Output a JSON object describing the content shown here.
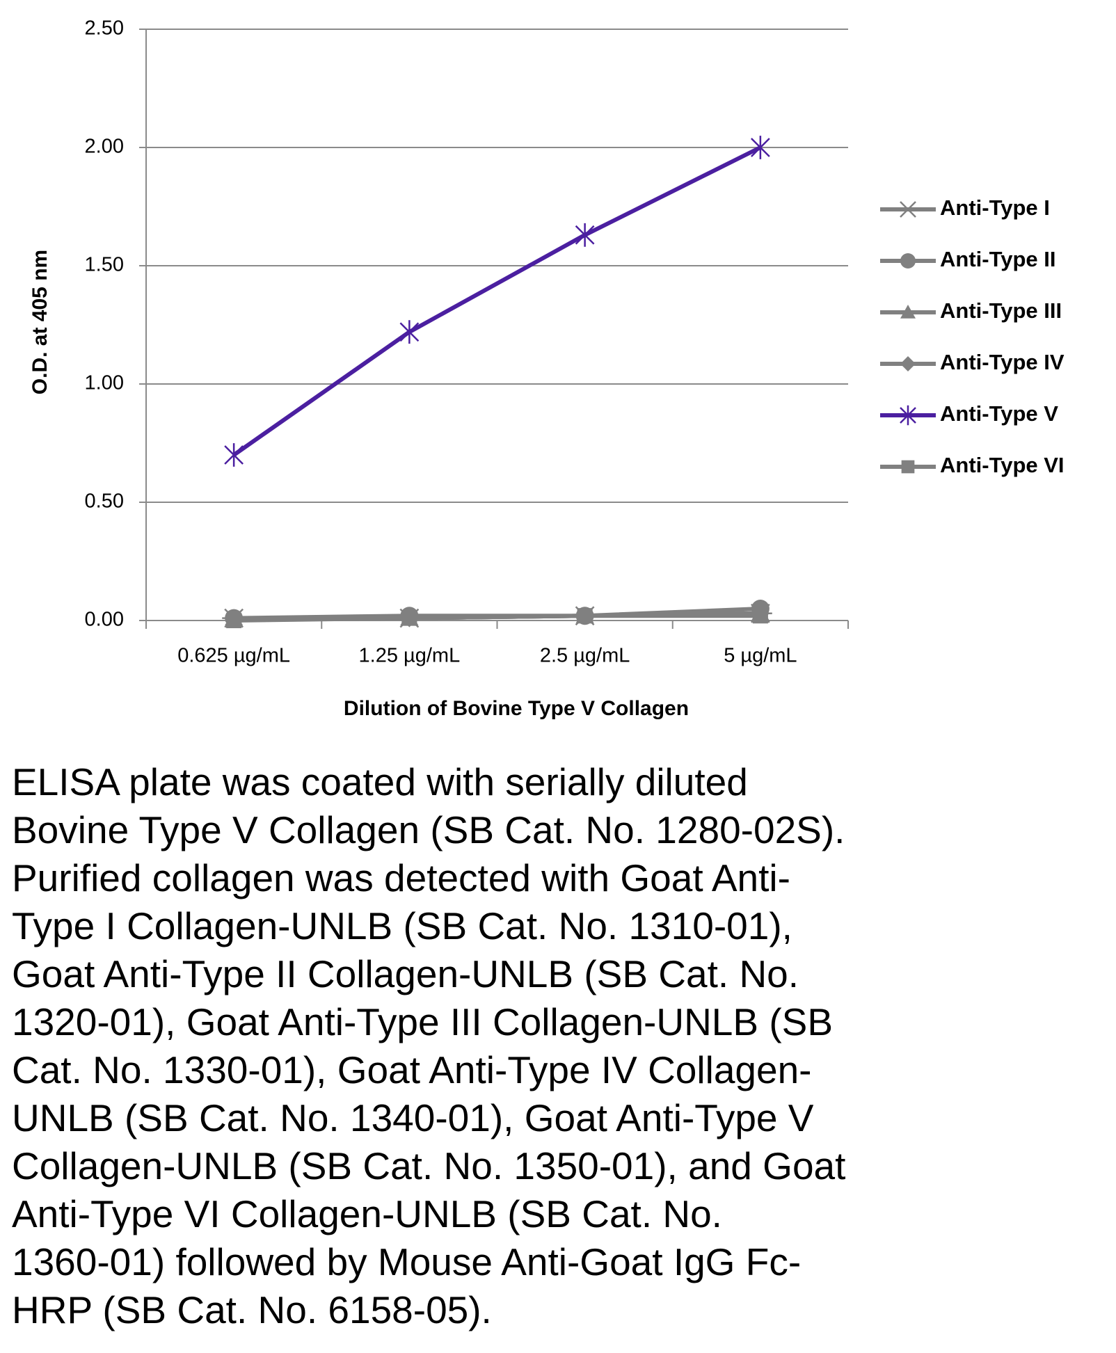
{
  "chart_data": {
    "type": "line",
    "xlabel": "Dilution of Bovine Type V Collagen",
    "ylabel": "O.D. at 405 nm",
    "categories": [
      "0.625 µg/mL",
      "1.25 µg/mL",
      "2.5 µg/mL",
      "5 µg/mL"
    ],
    "series": [
      {
        "name": "Anti-Type I",
        "color": "#808080",
        "marker": "asterisk",
        "values": [
          0.01,
          0.01,
          0.02,
          0.03
        ]
      },
      {
        "name": "Anti-Type II",
        "color": "#808080",
        "marker": "circle",
        "values": [
          0.01,
          0.02,
          0.02,
          0.05
        ]
      },
      {
        "name": "Anti-Type III",
        "color": "#808080",
        "marker": "triangle",
        "values": [
          0.01,
          0.01,
          0.02,
          0.03
        ]
      },
      {
        "name": "Anti-Type IV",
        "color": "#808080",
        "marker": "diamond",
        "values": [
          0.01,
          0.01,
          0.02,
          0.03
        ]
      },
      {
        "name": "Anti-Type V",
        "color": "#4b1fa0",
        "marker": "star",
        "values": [
          0.7,
          1.22,
          1.63,
          2.0
        ]
      },
      {
        "name": "Anti-Type VI",
        "color": "#808080",
        "marker": "square",
        "values": [
          0.0,
          0.01,
          0.02,
          0.02
        ]
      }
    ],
    "ylim": [
      0,
      2.5
    ],
    "yticks": [
      {
        "value": 0,
        "label": "0.00"
      },
      {
        "value": 0.5,
        "label": "0.50"
      },
      {
        "value": 1,
        "label": "1.00"
      },
      {
        "value": 1.5,
        "label": "1.50"
      },
      {
        "value": 2,
        "label": "2.00"
      },
      {
        "value": 2.5,
        "label": "2.50"
      }
    ],
    "grid": true,
    "legend": "right",
    "caption": [
      "ELISA plate was coated with serially diluted",
      "Bovine Type V Collagen (SB Cat. No. 1280-02S).",
      "Purified collagen was detected with Goat Anti-",
      "Type I Collagen-UNLB (SB Cat. No. 1310-01),",
      "Goat Anti-Type II Collagen-UNLB (SB Cat. No.",
      "1320-01), Goat Anti-Type III Collagen-UNLB (SB",
      "Cat. No. 1330-01), Goat Anti-Type IV Collagen-",
      "UNLB (SB Cat. No. 1340-01), Goat Anti-Type V",
      "Collagen-UNLB (SB Cat. No. 1350-01), and Goat",
      "Anti-Type VI Collagen-UNLB (SB Cat. No.",
      "1360-01) followed by Mouse Anti-Goat IgG Fc-",
      "HRP (SB Cat. No. 6158-05)."
    ]
  }
}
